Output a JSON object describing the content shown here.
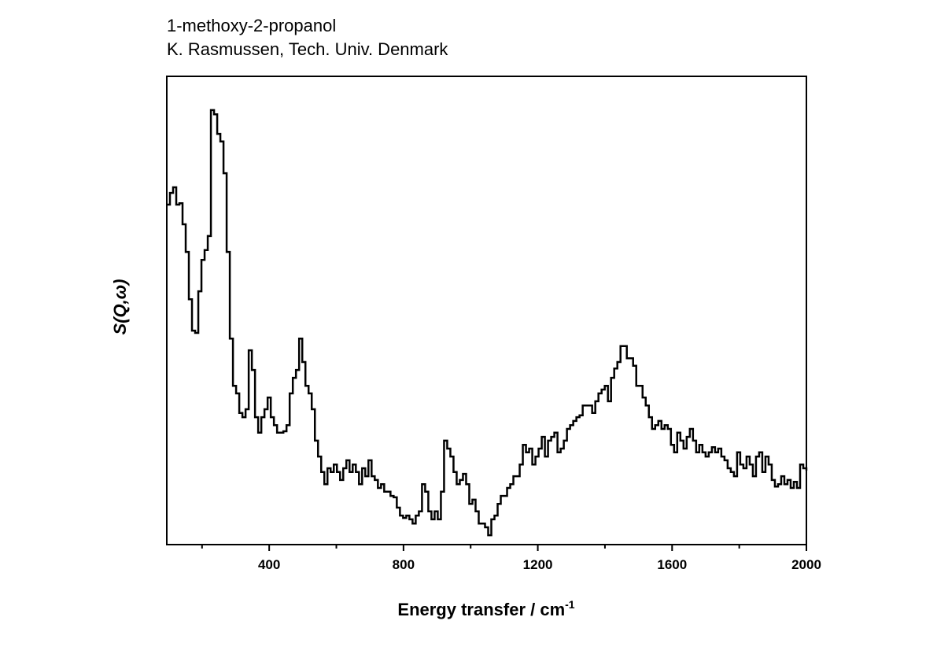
{
  "chart_data": {
    "type": "line",
    "style": "step",
    "title_lines": [
      "1-methoxy-2-propanol",
      "K. Rasmussen, Tech. Univ. Denmark"
    ],
    "xlabel": "Energy transfer / cm",
    "xlabel_superscript": "-1",
    "ylabel": "S(Q,ω)",
    "xlim": [
      95,
      2000
    ],
    "ylim": [
      0,
      100
    ],
    "x_range": [
      95,
      2000
    ],
    "xticks": [
      400,
      800,
      1200,
      1600,
      2000
    ],
    "xtick_labels": [
      "400",
      "800",
      "1200",
      "1600",
      "2000"
    ],
    "minor_xticks": [
      200,
      600,
      1000,
      1400,
      1800
    ],
    "yticks": [],
    "grid": false,
    "line_color": "#000000",
    "y": [
      72.6,
      75.1,
      76.3,
      72.6,
      72.9,
      68.4,
      62.5,
      52.4,
      45.7,
      45.2,
      54.1,
      60.8,
      62.9,
      65.9,
      92.8,
      91.9,
      87.7,
      86.1,
      79.3,
      62.5,
      44.0,
      33.9,
      32.3,
      28.1,
      27.2,
      28.9,
      41.5,
      37.3,
      27.2,
      23.9,
      27.2,
      28.9,
      31.4,
      27.2,
      25.5,
      23.9,
      23.9,
      24.2,
      25.5,
      32.3,
      35.6,
      37.3,
      44.0,
      39.0,
      33.9,
      32.3,
      28.9,
      22.2,
      18.8,
      15.5,
      12.9,
      16.3,
      15.5,
      17.1,
      15.5,
      13.8,
      16.3,
      18.0,
      15.5,
      17.1,
      15.5,
      12.9,
      16.3,
      14.6,
      18.0,
      14.6,
      13.8,
      12.1,
      12.9,
      11.3,
      11.3,
      10.4,
      10.1,
      7.9,
      6.2,
      5.7,
      6.2,
      5.4,
      4.5,
      6.2,
      7.1,
      12.9,
      11.3,
      7.1,
      5.4,
      7.1,
      5.4,
      11.3,
      22.2,
      20.5,
      18.8,
      15.5,
      12.9,
      13.8,
      15.1,
      12.9,
      8.7,
      9.6,
      7.1,
      4.5,
      4.5,
      3.7,
      2.0,
      5.4,
      6.2,
      8.7,
      10.4,
      10.4,
      12.1,
      12.9,
      14.6,
      14.6,
      17.1,
      21.3,
      19.7,
      20.5,
      17.1,
      18.8,
      20.5,
      23.0,
      18.8,
      22.2,
      23.0,
      23.9,
      19.7,
      20.5,
      22.2,
      24.7,
      25.5,
      26.4,
      27.2,
      27.6,
      29.7,
      29.7,
      29.7,
      28.1,
      30.6,
      32.3,
      33.1,
      33.9,
      30.6,
      35.6,
      37.6,
      39.0,
      42.4,
      42.4,
      39.8,
      39.8,
      38.2,
      33.9,
      33.9,
      31.4,
      29.7,
      27.2,
      24.7,
      25.5,
      26.4,
      24.7,
      25.5,
      24.7,
      21.3,
      19.7,
      23.9,
      22.2,
      20.5,
      23.0,
      24.7,
      22.2,
      19.7,
      21.3,
      19.7,
      18.8,
      19.7,
      20.8,
      19.7,
      20.5,
      18.8,
      18.0,
      16.3,
      15.5,
      14.6,
      19.7,
      17.1,
      16.3,
      18.8,
      17.1,
      14.6,
      18.8,
      19.7,
      15.5,
      18.8,
      17.1,
      13.8,
      12.4,
      12.9,
      14.6,
      12.9,
      13.8,
      12.1,
      13.4,
      12.1,
      17.1,
      16.3,
      15.8
    ]
  }
}
